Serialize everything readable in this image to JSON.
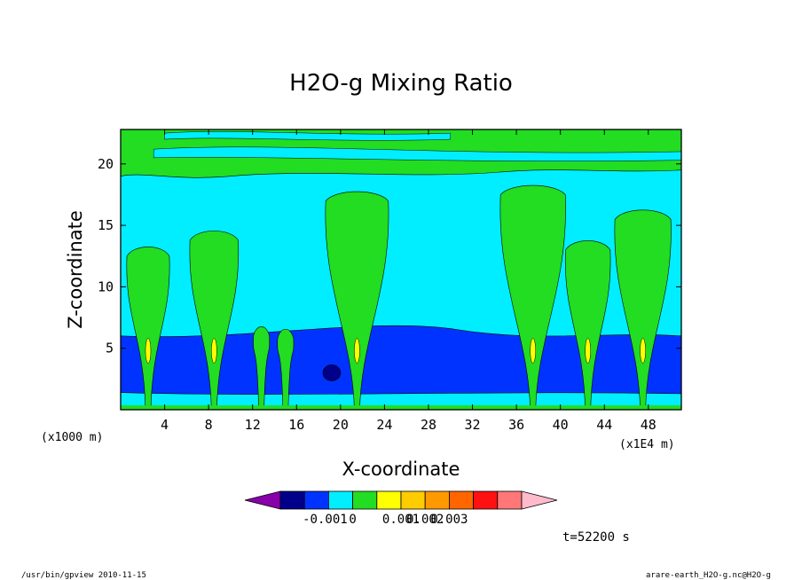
{
  "chart_data": {
    "type": "heatmap",
    "title": "H2O-g Mixing Ratio",
    "xlabel": "X-coordinate",
    "ylabel": "Z-coordinate",
    "x_unit_left": "(x1000 m)",
    "x_unit_right": "(x1E4 m)",
    "xlim": [
      0,
      51
    ],
    "ylim": [
      0,
      22.8
    ],
    "x_ticks": [
      4,
      8,
      12,
      16,
      20,
      24,
      28,
      32,
      36,
      40,
      44,
      48
    ],
    "y_ticks": [
      5,
      10,
      15,
      20
    ],
    "colorbar": {
      "levels": [
        -0.001,
        0,
        0.001,
        0.002,
        0.003
      ],
      "tick_labels": [
        "-0.001",
        "0",
        "0.001",
        "0.002",
        "0.003"
      ],
      "colors": [
        "#8800aa",
        "#00008b",
        "#0033ff",
        "#00eeff",
        "#22dd22",
        "#ffff00",
        "#ffcc00",
        "#ff9900",
        "#ff6600",
        "#ff1111",
        "#ff7777",
        "#ffbbcc"
      ]
    },
    "fields": {
      "background": "#00eeff",
      "low_band": "#0033ff",
      "moist": "#22dd22",
      "core": "#00008b",
      "peak": "#ffff00"
    },
    "plumes": [
      {
        "x": 2.5,
        "top": 13.5
      },
      {
        "x": 8.5,
        "top": 14.8
      },
      {
        "x": 12.8,
        "top": 7.0
      },
      {
        "x": 15.0,
        "top": 6.8
      },
      {
        "x": 21.5,
        "top": 18.0
      },
      {
        "x": 37.5,
        "top": 18.5
      },
      {
        "x": 42.5,
        "top": 14.0
      },
      {
        "x": 47.5,
        "top": 16.5
      }
    ]
  },
  "time_label": "t=52200 s",
  "footer": {
    "left": "/usr/bin/gpview  2010-11-15",
    "right": "arare-earth_H2O-g.nc@H2O-g"
  }
}
